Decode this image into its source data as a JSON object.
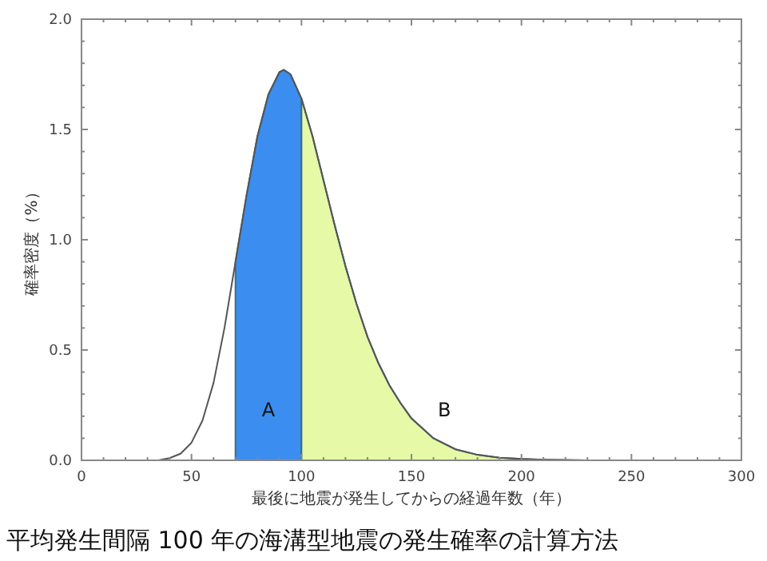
{
  "chart_data": {
    "type": "line",
    "title": "平均発生間隔 100 年の海溝型地震の発生確率の計算方法",
    "xlabel": "最後に地震が発生してからの経過年数（年）",
    "ylabel": "確率密度（%）",
    "xlim": [
      0,
      300
    ],
    "xticks": [
      0,
      50,
      100,
      150,
      200,
      250,
      300
    ],
    "ylim": [
      0,
      2.0
    ],
    "yticks": [
      {
        "value": 0,
        "label": "0.0"
      },
      0.5,
      {
        "value": 1,
        "label": "1.0"
      },
      1.5,
      {
        "value": 2,
        "label": "2.0"
      }
    ],
    "grid": false,
    "legend": false,
    "series": [
      {
        "name": "A",
        "type": "area",
        "color": "#3b8ef0",
        "x": [
          70,
          75,
          80,
          85,
          90,
          92,
          95,
          100
        ],
        "values": [
          0.9,
          1.2,
          1.47,
          1.66,
          1.76,
          1.77,
          1.75,
          1.64
        ]
      },
      {
        "name": "B",
        "type": "area",
        "color": "#e6f9a6",
        "x": [
          100,
          105,
          110,
          115,
          120,
          125,
          130,
          135,
          140,
          145,
          150,
          160,
          170,
          180,
          190,
          200,
          210,
          230
        ],
        "values": [
          1.64,
          1.47,
          1.27,
          1.07,
          0.88,
          0.71,
          0.56,
          0.44,
          0.34,
          0.26,
          0.19,
          0.1,
          0.05,
          0.025,
          0.012,
          0.006,
          0.003,
          0
        ]
      },
      {
        "color": "#555555",
        "x": [
          35,
          40,
          45,
          50,
          55,
          60,
          65,
          70,
          75,
          80,
          85,
          90,
          92,
          95,
          100,
          105,
          110,
          115,
          120,
          125,
          130,
          135,
          140,
          145,
          150,
          160,
          170,
          180,
          190,
          200,
          210,
          230
        ],
        "values": [
          0,
          0.01,
          0.03,
          0.08,
          0.18,
          0.35,
          0.6,
          0.9,
          1.2,
          1.47,
          1.66,
          1.76,
          1.77,
          1.75,
          1.64,
          1.47,
          1.27,
          1.07,
          0.88,
          0.71,
          0.56,
          0.44,
          0.34,
          0.26,
          0.19,
          0.1,
          0.05,
          0.025,
          0.012,
          0.006,
          0.003,
          0
        ]
      }
    ]
  }
}
